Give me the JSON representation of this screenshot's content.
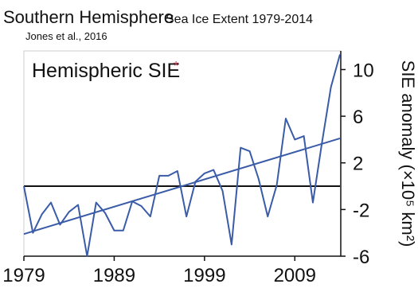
{
  "chart_data": {
    "type": "line",
    "title": "Southern Hemisphere",
    "subtitle": "Sea Ice Extent 1979-2014",
    "source": "Jones et al., 2016",
    "panel_label": "Hemispheric SIE",
    "panel_label_mark": "*",
    "ylabel": "SIE anomaly (×10⁵ km²)",
    "x": [
      1979,
      1980,
      1981,
      1982,
      1983,
      1984,
      1985,
      1986,
      1987,
      1988,
      1989,
      1990,
      1991,
      1992,
      1993,
      1994,
      1995,
      1996,
      1997,
      1998,
      1999,
      2000,
      2001,
      2002,
      2003,
      2004,
      2005,
      2006,
      2007,
      2008,
      2009,
      2010,
      2011,
      2012,
      2013,
      2014
    ],
    "series": [
      {
        "color": "#3a5ba8",
        "values": [
          0,
          -4,
          -2.4,
          -1.4,
          -3.3,
          -2.2,
          -1.6,
          -6,
          -1.4,
          -2.3,
          -3.8,
          -3.8,
          -1.3,
          -1.7,
          -2.6,
          0.9,
          0.9,
          1.3,
          -2.6,
          0.4,
          1.1,
          1.4,
          -0.4,
          -5,
          3.3,
          3,
          0.6,
          -2.6,
          0.1,
          5.8,
          4,
          4.3,
          -1.4,
          3.7,
          8.5,
          11.3
        ]
      }
    ],
    "trend": {
      "x": [
        1979,
        2014
      ],
      "values": [
        -4.1,
        4.1
      ],
      "color": "#3a5ba8"
    },
    "reference_line": 0,
    "xlim": [
      1979,
      2014
    ],
    "xticks": [
      1979,
      1989,
      1999,
      2009
    ],
    "ylim": [
      -6,
      11.6
    ],
    "yticks": [
      -6,
      -2,
      2,
      6,
      10
    ]
  }
}
